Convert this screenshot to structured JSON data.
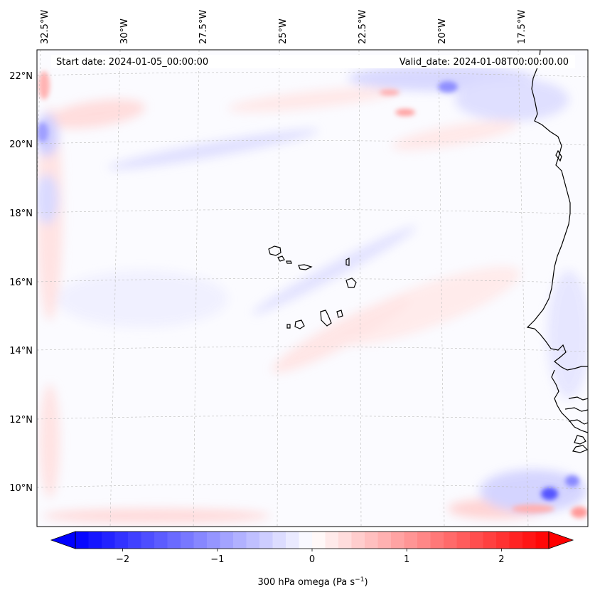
{
  "map": {
    "start_date": "Start date: 2024-01-05_00:00:00",
    "valid_date": "Valid_date: 2024-01-08T00:00:00.00",
    "lon_labels": [
      "32.5°W",
      "30°W",
      "27.5°W",
      "25°W",
      "22.5°W",
      "20°W",
      "17.5°W"
    ],
    "lat_labels": [
      "22°N",
      "20°N",
      "18°N",
      "16°N",
      "14°N",
      "12°N",
      "10°N"
    ],
    "colormap": "bwr",
    "coastline_color": "#000000"
  },
  "colorbar": {
    "label_main": "300 hPa omega (Pa s",
    "label_exp": "−1",
    "label_end": ")",
    "ticks": [
      "−2",
      "−1",
      "0",
      "1",
      "2"
    ],
    "tick_values": [
      -2,
      -1,
      0,
      1,
      2
    ],
    "range": [
      -2.5,
      2.5
    ],
    "extend": "both",
    "low_color": "#0000ff",
    "mid_color": "#ffffff",
    "high_color": "#ff0000"
  }
}
